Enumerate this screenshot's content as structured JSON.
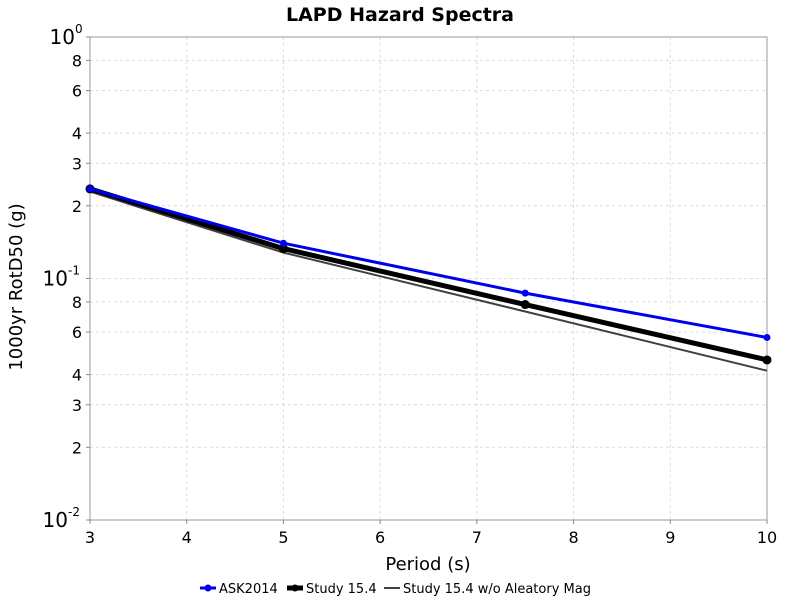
{
  "chart_data": {
    "type": "line",
    "title": "LAPD Hazard Spectra",
    "xlabel": "Period (s)",
    "ylabel": "1000yr RotD50 (g)",
    "xlim": [
      3,
      10
    ],
    "ylim": [
      0.01,
      1
    ],
    "yscale": "log",
    "grid": true,
    "legend_position": "bottom",
    "x_ticks": [
      "3",
      "4",
      "5",
      "6",
      "7",
      "8",
      "9",
      "10"
    ],
    "y_minor_ticks": [
      {
        "value": 0.02,
        "label": "2"
      },
      {
        "value": 0.03,
        "label": "3"
      },
      {
        "value": 0.04,
        "label": "4"
      },
      {
        "value": 0.06,
        "label": "6"
      },
      {
        "value": 0.08,
        "label": "8"
      },
      {
        "value": 0.2,
        "label": "2"
      },
      {
        "value": 0.3,
        "label": "3"
      },
      {
        "value": 0.4,
        "label": "4"
      },
      {
        "value": 0.6,
        "label": "6"
      },
      {
        "value": 0.8,
        "label": "8"
      }
    ],
    "y_decade_ticks": [
      {
        "value": 0.01,
        "base": "10",
        "exponent": "-2"
      },
      {
        "value": 0.1,
        "base": "10",
        "exponent": "-1"
      },
      {
        "value": 1,
        "base": "10",
        "exponent": "0"
      }
    ],
    "series": [
      {
        "name": "ASK2014",
        "color": "#0000ee",
        "markers": true,
        "x": [
          3,
          5,
          7.5,
          10
        ],
        "y": [
          0.235,
          0.14,
          0.087,
          0.057
        ]
      },
      {
        "name": "Study 15.4",
        "color": "#000000",
        "markers": true,
        "x": [
          3,
          5,
          7.5,
          10
        ],
        "y": [
          0.235,
          0.133,
          0.078,
          0.046
        ]
      },
      {
        "name": "Study 15.4 w/o Aleatory Mag",
        "color": "#404040",
        "markers": false,
        "x": [
          3,
          5,
          7.5,
          10
        ],
        "y": [
          0.229,
          0.128,
          0.073,
          0.0415
        ]
      }
    ]
  }
}
